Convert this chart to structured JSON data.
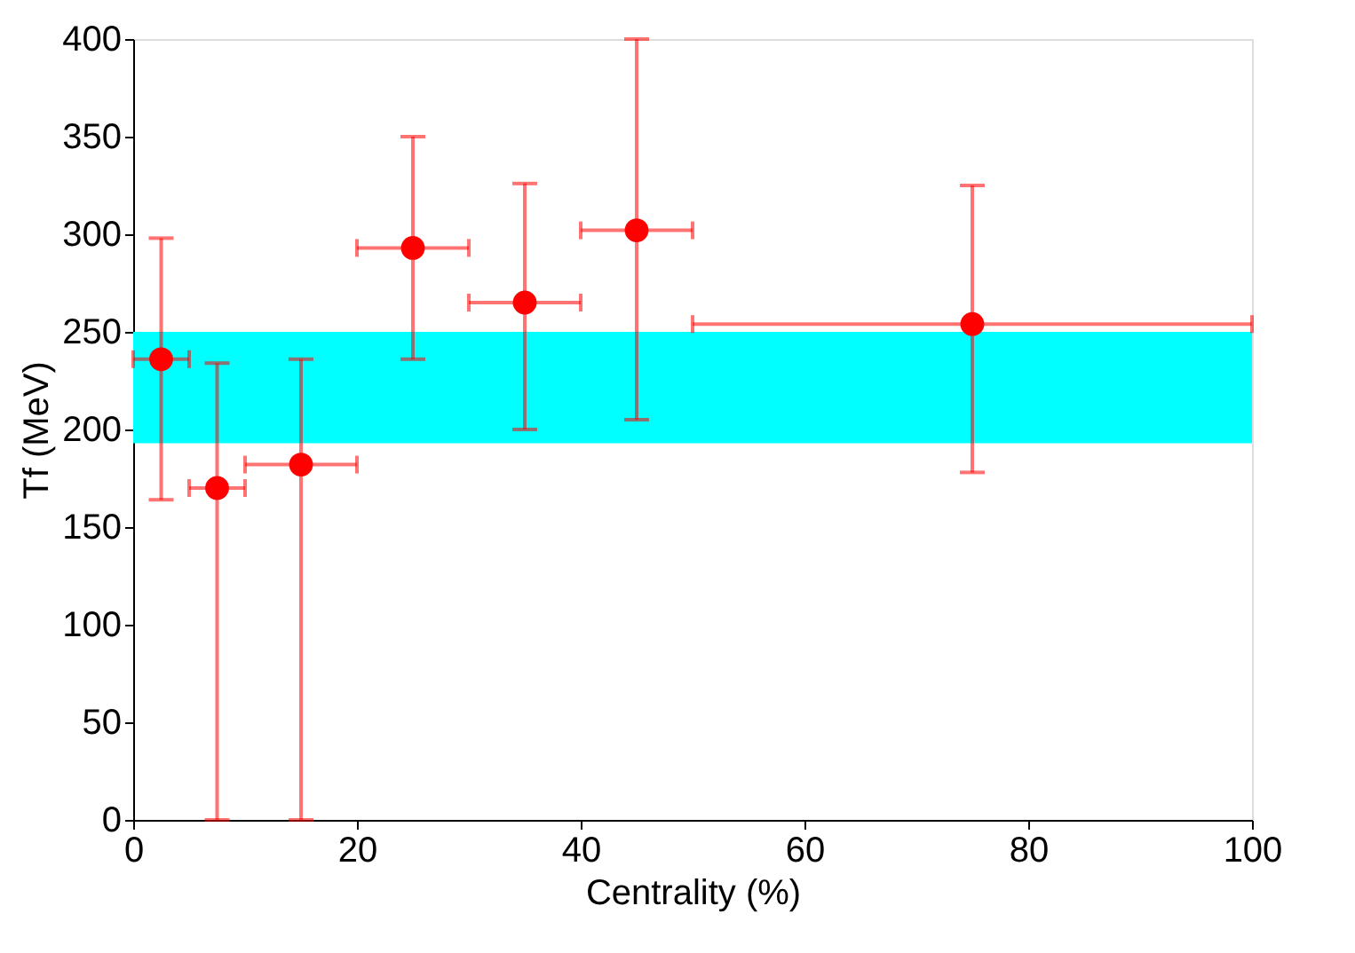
{
  "chart_data": {
    "type": "scatter",
    "xlabel": "Centrality (%)",
    "ylabel": "Tf (MeV)",
    "x": [
      2.5,
      7.5,
      15,
      25,
      35,
      45,
      75
    ],
    "series": [
      {
        "color": "#ff0000",
        "values": [
          236,
          170,
          182,
          293,
          265,
          302,
          254
        ],
        "errors": [
          [
            164,
            298
          ],
          [
            0,
            234
          ],
          [
            0,
            236
          ],
          [
            236,
            350
          ],
          [
            200,
            326
          ],
          [
            205,
            400
          ],
          [
            178,
            325
          ]
        ],
        "xerrors": [
          [
            0,
            5
          ],
          [
            5,
            10
          ],
          [
            10,
            20
          ],
          [
            20,
            30
          ],
          [
            30,
            40
          ],
          [
            40,
            50
          ],
          [
            50,
            100
          ]
        ]
      }
    ],
    "bands": [
      {
        "axis": "y",
        "from": 193,
        "to": 250,
        "color": "#00ffff"
      }
    ],
    "xlim": [
      0,
      100
    ],
    "xticks": [
      0,
      20,
      40,
      60,
      80,
      100
    ],
    "ylim": [
      0,
      400
    ],
    "yticks": [
      0,
      50,
      100,
      150,
      200,
      250,
      300,
      350,
      400
    ],
    "marker": "circle",
    "grid": false
  }
}
